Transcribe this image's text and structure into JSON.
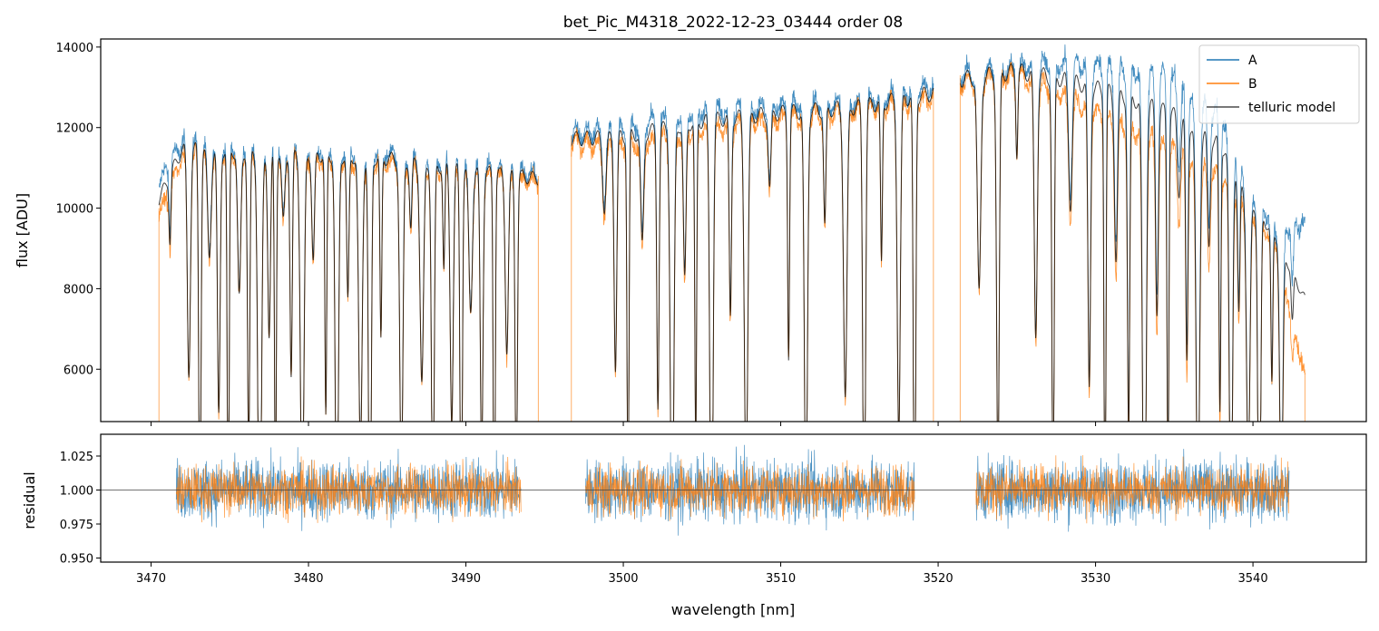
{
  "chart_data": [
    {
      "type": "line",
      "title": "bet_Pic_M4318_2022-12-23_03444  order 08",
      "xlabel": "",
      "ylabel": "flux [ADU]",
      "xlim": [
        3466.8,
        3547.2
      ],
      "ylim": [
        4700,
        14200
      ],
      "x_ticks": [
        3470,
        3480,
        3490,
        3500,
        3510,
        3520,
        3530,
        3540
      ],
      "y_ticks": [
        6000,
        8000,
        10000,
        12000,
        14000
      ],
      "y_tick_labels": [
        "6000",
        "8000",
        "10000",
        "12000",
        "14000"
      ],
      "segments": [
        [
          3470.5,
          3494.6
        ],
        [
          3496.7,
          3519.7
        ],
        [
          3521.4,
          3543.3
        ]
      ],
      "continuum": {
        "x": [
          3470.5,
          3471,
          3472,
          3475,
          3480,
          3485,
          3490,
          3494.6,
          3496.7,
          3500,
          3505,
          3510,
          3515,
          3519.7,
          3521.4,
          3525,
          3528,
          3532,
          3535,
          3538,
          3540,
          3541.5,
          3543.3
        ],
        "A": [
          10700,
          11200,
          11800,
          11700,
          11600,
          11500,
          11200,
          11000,
          12000,
          12200,
          12600,
          12700,
          12800,
          13200,
          13500,
          13700,
          13800,
          13700,
          13400,
          12500,
          10500,
          9600,
          9800
        ],
        "B": [
          10000,
          10400,
          11500,
          11500,
          11400,
          11300,
          11000,
          10800,
          11800,
          11700,
          12100,
          12400,
          12600,
          12900,
          13300,
          13500,
          13000,
          12200,
          11600,
          11000,
          10000,
          9200,
          5900
        ]
      },
      "absorption_lines": [
        3471.2,
        3472.4,
        3473.1,
        3473.7,
        3474.3,
        3474.9,
        3475.6,
        3476.2,
        3476.9,
        3477.5,
        3477.9,
        3478.4,
        3478.9,
        3479.6,
        3480.3,
        3481.1,
        3481.8,
        3482.5,
        3483.3,
        3483.9,
        3484.6,
        3485.9,
        3486.5,
        3487.2,
        3487.9,
        3488.6,
        3489.1,
        3489.7,
        3490.3,
        3491.0,
        3491.8,
        3492.6,
        3493.2,
        3498.8,
        3499.5,
        3500.3,
        3501.2,
        3502.2,
        3503.1,
        3503.9,
        3504.6,
        3505.6,
        3506.8,
        3507.8,
        3509.3,
        3510.5,
        3511.6,
        3512.8,
        3514.1,
        3515.3,
        3516.4,
        3517.5,
        3518.5,
        3522.6,
        3523.8,
        3525.0,
        3526.2,
        3527.3,
        3528.4,
        3529.6,
        3530.6,
        3531.3,
        3532.1,
        3533.1,
        3533.9,
        3534.6,
        3535.3,
        3535.8,
        3536.5,
        3537.2,
        3537.9,
        3538.6,
        3539.1,
        3539.7,
        3540.4,
        3541.2,
        3541.8,
        3542.5
      ],
      "series": [
        {
          "name": "A",
          "color": "#1f77b4"
        },
        {
          "name": "B",
          "color": "#ff7f0e"
        },
        {
          "name": "telluric model",
          "color": "#000000"
        }
      ],
      "legend_position": "top-right"
    },
    {
      "type": "line",
      "xlabel": "wavelength [nm]",
      "ylabel": "residual",
      "xlim": [
        3466.8,
        3547.2
      ],
      "ylim": [
        0.947,
        1.041
      ],
      "x_ticks": [
        3470,
        3480,
        3490,
        3500,
        3510,
        3520,
        3530,
        3540
      ],
      "x_tick_labels": [
        "3470",
        "3480",
        "3490",
        "3500",
        "3510",
        "3520",
        "3530",
        "3540"
      ],
      "y_ticks": [
        0.95,
        0.975,
        1.0,
        1.025
      ],
      "y_tick_labels": [
        "0.950",
        "0.975",
        "1.000",
        "1.025"
      ],
      "reference_line": 1.0,
      "segments": [
        [
          3471.6,
          3493.5
        ],
        [
          3497.6,
          3518.5
        ],
        [
          3522.4,
          3542.3
        ]
      ],
      "series": [
        {
          "name": "A",
          "color": "#1f77b4"
        },
        {
          "name": "B",
          "color": "#ff7f0e"
        }
      ]
    }
  ]
}
